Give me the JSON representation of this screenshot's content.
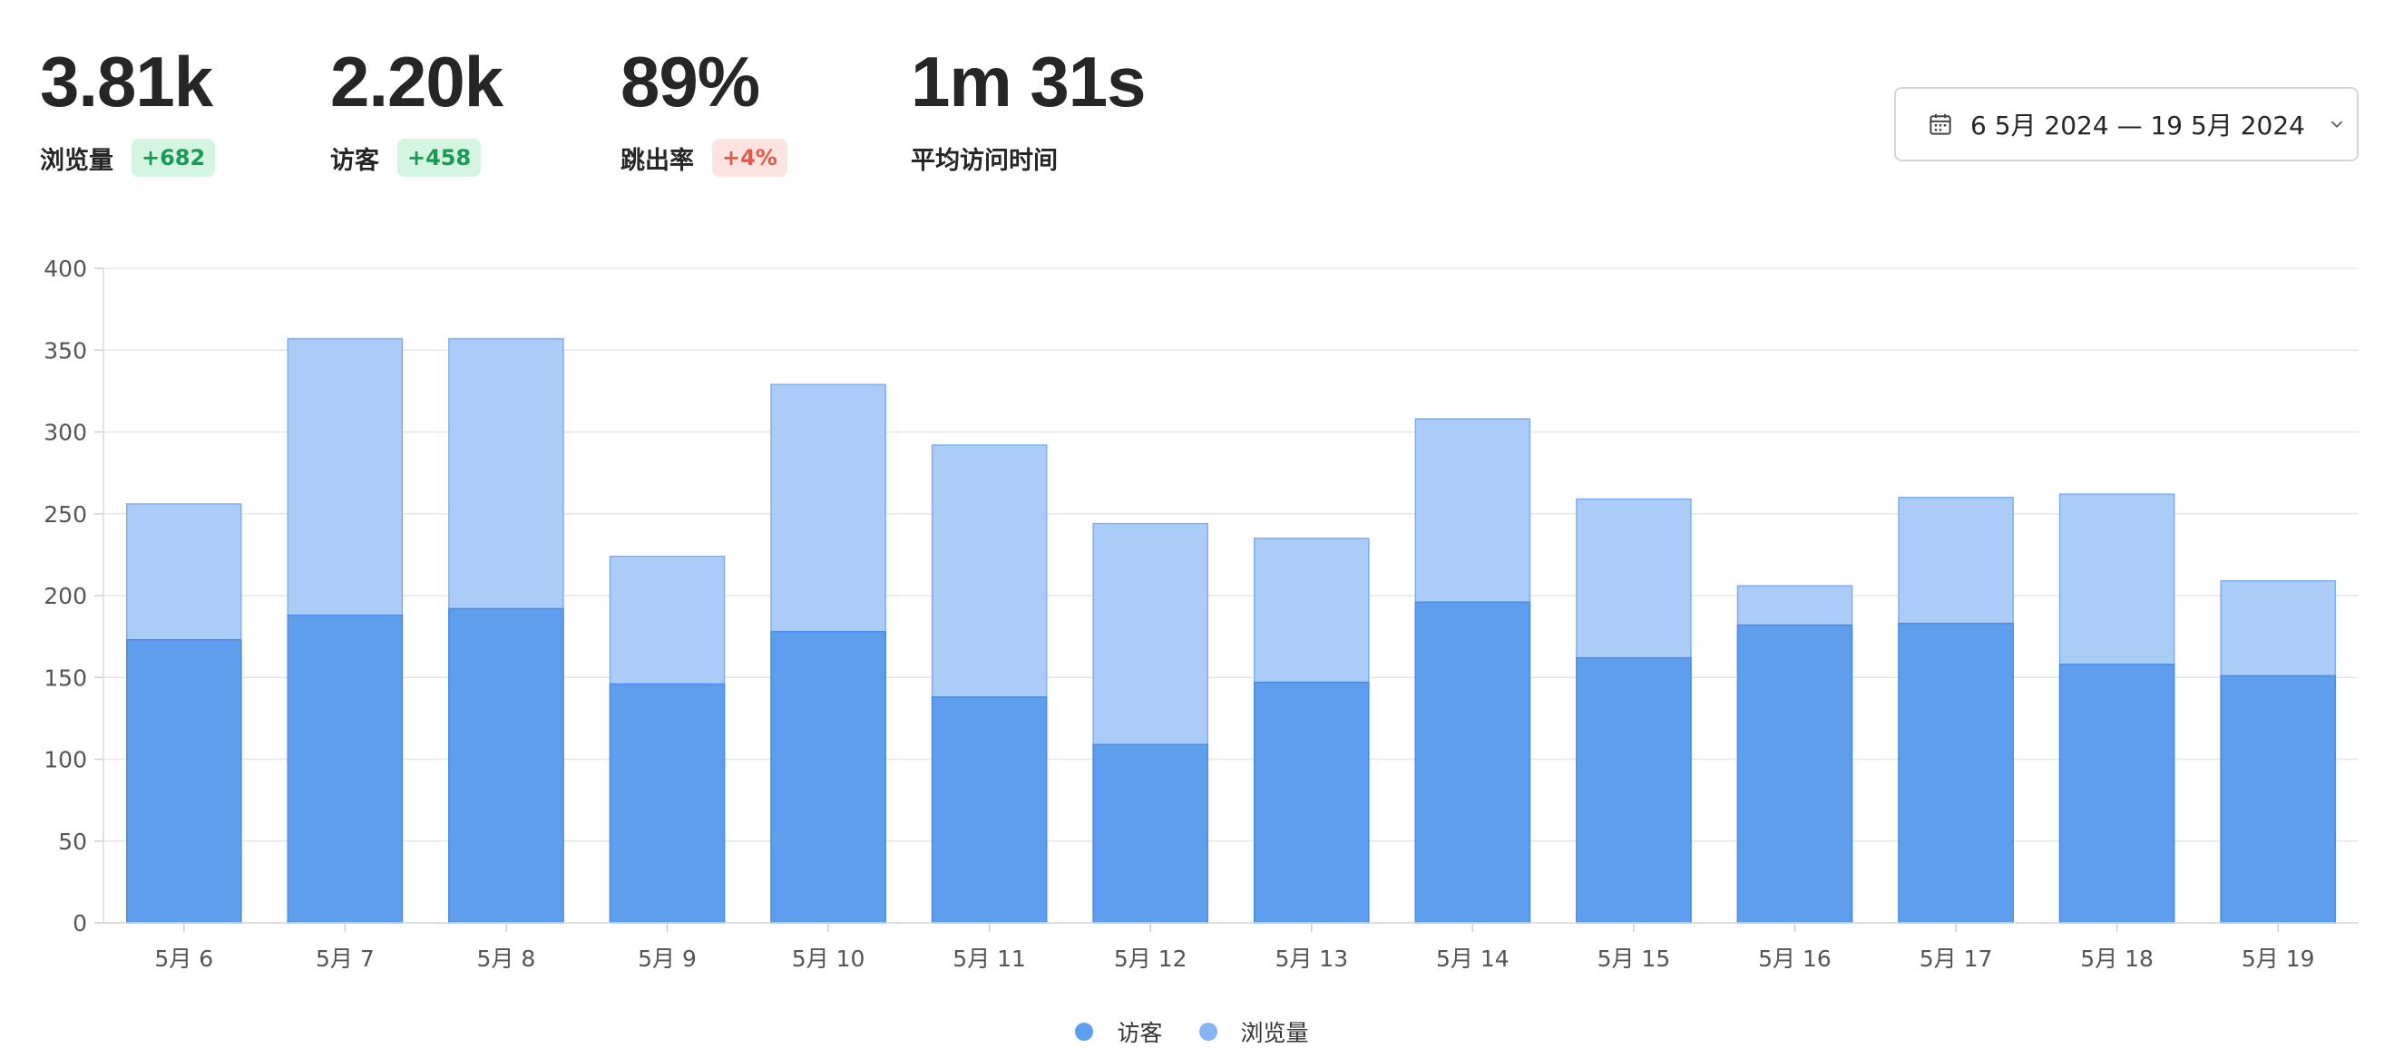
{
  "stats": [
    {
      "value": "3.81k",
      "label": "浏览量",
      "badge": "+682",
      "trend": "up"
    },
    {
      "value": "2.20k",
      "label": "访客",
      "badge": "+458",
      "trend": "up"
    },
    {
      "value": "89%",
      "label": "跳出率",
      "badge": "+4%",
      "trend": "down"
    },
    {
      "value": "1m 31s",
      "label": "平均访问时间",
      "badge": "",
      "trend": ""
    }
  ],
  "date_picker": {
    "label": "6 5月 2024 — 19 5月 2024"
  },
  "colors": {
    "visitors": "#5f9ded",
    "pageviews": "#abccf6",
    "visitors_stroke": "#4a8be6",
    "pageviews_stroke": "#7eaef2",
    "badge_up_bg": "#d3f5e1",
    "badge_up_text": "#1a9a55",
    "badge_down_bg": "#fde4e1",
    "badge_down_text": "#e25a48"
  },
  "chart_data": {
    "type": "bar",
    "stacked": "overlay",
    "categories": [
      "5月 6",
      "5月 7",
      "5月 8",
      "5月 9",
      "5月 10",
      "5月 11",
      "5月 12",
      "5月 13",
      "5月 14",
      "5月 15",
      "5月 16",
      "5月 17",
      "5月 18",
      "5月 19"
    ],
    "series": [
      {
        "name": "访客",
        "values": [
          173,
          188,
          192,
          146,
          178,
          138,
          109,
          147,
          196,
          162,
          182,
          183,
          158,
          151
        ]
      },
      {
        "name": "浏览量",
        "values": [
          256,
          357,
          357,
          224,
          329,
          292,
          244,
          235,
          308,
          259,
          206,
          260,
          262,
          209
        ]
      }
    ],
    "ylim": [
      0,
      400
    ],
    "yticks": [
      0,
      50,
      100,
      150,
      200,
      250,
      300,
      350,
      400
    ],
    "grid": true,
    "legend": "bottom-center"
  }
}
